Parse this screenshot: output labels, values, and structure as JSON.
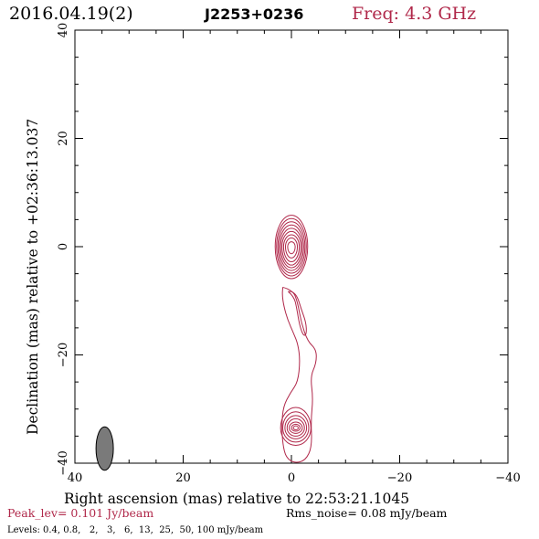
{
  "header": {
    "date": "2016.04.19(2)",
    "source": "J2253+0236",
    "freq": "Freq: 4.3 GHz"
  },
  "footer": {
    "peak": "Peak_lev=  0.101 Jy/beam",
    "rms": "Rms_noise= 0.08 mJy/beam",
    "levels": "Levels: 0.4, 0.8,   2,   3,   6,  13,  25,  50, 100 mJy/beam"
  },
  "colors": {
    "contour": "#b0284a",
    "title_red": "#b0284a",
    "beam": "#7a7a7a"
  },
  "chart_data": {
    "type": "contour",
    "xlabel": "Right ascension (mas) relative to 22:53:21.1045",
    "ylabel": "Declination (mas) relative to +02:36:13.037",
    "xlim": [
      40,
      -40
    ],
    "ylim": [
      -40,
      40
    ],
    "xticks": [
      40,
      20,
      0,
      -20,
      -40
    ],
    "yticks": [
      -40,
      -20,
      0,
      20,
      40
    ],
    "xtick_labels": [
      "40",
      "20",
      "0",
      "−20",
      "−40"
    ],
    "ytick_labels": [
      "−40",
      "−20",
      "0",
      "20",
      "40"
    ],
    "beam": {
      "x": 34.5,
      "y": -37.3,
      "major": 4.0,
      "minor": 1.6,
      "pa": 0
    },
    "components": [
      {
        "name": "core",
        "center": [
          0.0,
          0.0
        ],
        "rings": [
          [
            3.0,
            5.8,
            5.9
          ],
          [
            2.75,
            5.2,
            5.4
          ],
          [
            2.5,
            4.6,
            4.9
          ],
          [
            2.25,
            4.0,
            4.4
          ],
          [
            2.0,
            3.4,
            3.9
          ],
          [
            1.75,
            2.8,
            3.4
          ],
          [
            1.45,
            2.2,
            2.8
          ],
          [
            1.1,
            1.6,
            2.1
          ],
          [
            0.7,
            0.9,
            1.3
          ]
        ]
      },
      {
        "name": "jet-knot",
        "center": [
          -0.8,
          -33.5
        ],
        "rings": [
          [
            2.8,
            3.8,
            3.2
          ],
          [
            2.4,
            3.0,
            2.6
          ],
          [
            2.0,
            2.3,
            2.0
          ],
          [
            1.6,
            1.7,
            1.5
          ],
          [
            1.2,
            1.1,
            1.0
          ],
          [
            0.8,
            0.7,
            0.6
          ],
          [
            0.45,
            0.4,
            0.35
          ]
        ]
      }
    ],
    "jet_contours": [
      [
        [
          1.6,
          -7.5
        ],
        [
          -0.3,
          -8.0
        ],
        [
          -1.2,
          -10.5
        ],
        [
          -1.8,
          -14.0
        ],
        [
          -3.0,
          -17.5
        ],
        [
          -4.6,
          -19.0
        ],
        [
          -4.6,
          -21.5
        ],
        [
          -3.5,
          -24.0
        ],
        [
          -4.0,
          -28.0
        ],
        [
          -3.6,
          -32.0
        ],
        [
          -3.8,
          -37.0
        ],
        [
          -2.6,
          -39.5
        ],
        [
          -0.6,
          -40.0
        ],
        [
          1.0,
          -39.0
        ],
        [
          1.6,
          -36.5
        ],
        [
          1.8,
          -33.0
        ],
        [
          1.5,
          -29.5
        ],
        [
          0.2,
          -27.0
        ],
        [
          -1.2,
          -25.0
        ],
        [
          -1.6,
          -21.0
        ],
        [
          -1.2,
          -18.0
        ],
        [
          -0.4,
          -16.0
        ],
        [
          0.7,
          -13.5
        ],
        [
          1.4,
          -11.0
        ],
        [
          1.7,
          -9.0
        ],
        [
          1.6,
          -7.5
        ]
      ],
      [
        [
          0.6,
          -8.3
        ],
        [
          -0.5,
          -9.2
        ],
        [
          -1.0,
          -11.5
        ],
        [
          -1.5,
          -14.5
        ],
        [
          -2.2,
          -16.5
        ],
        [
          -2.8,
          -16.2
        ],
        [
          -2.7,
          -14.0
        ],
        [
          -1.8,
          -11.5
        ],
        [
          -1.1,
          -9.2
        ],
        [
          -0.2,
          -8.3
        ],
        [
          0.6,
          -8.3
        ]
      ]
    ]
  }
}
